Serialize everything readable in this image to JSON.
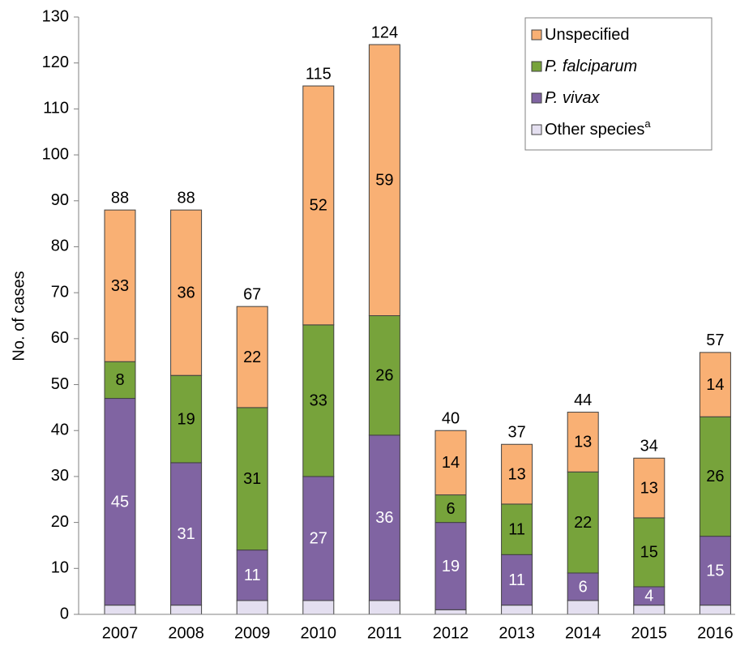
{
  "chart_data": {
    "type": "stacked_bar",
    "ylabel": "No. of cases",
    "categories": [
      "2007",
      "2008",
      "2009",
      "2010",
      "2011",
      "2012",
      "2013",
      "2014",
      "2015",
      "2016"
    ],
    "series": [
      {
        "name": "Other species",
        "superscript": "a",
        "color": "#e4dff0",
        "show_labels": false,
        "label_color": "#000000",
        "italic": false,
        "values": [
          2,
          2,
          3,
          3,
          3,
          1,
          2,
          3,
          2,
          2
        ]
      },
      {
        "name": "P. vivax",
        "color": "#8064a2",
        "show_labels": true,
        "label_color": "#ffffff",
        "italic": true,
        "values": [
          45,
          31,
          11,
          27,
          36,
          19,
          11,
          6,
          4,
          15
        ]
      },
      {
        "name": "P. falciparum",
        "color": "#77a33b",
        "show_labels": true,
        "label_color": "#000000",
        "italic": true,
        "values": [
          8,
          19,
          31,
          33,
          26,
          6,
          11,
          22,
          15,
          26
        ]
      },
      {
        "name": "Unspecified",
        "color": "#f9b074",
        "show_labels": true,
        "label_color": "#000000",
        "italic": false,
        "values": [
          33,
          36,
          22,
          52,
          59,
          14,
          13,
          13,
          13,
          14
        ]
      }
    ],
    "totals": [
      88,
      88,
      67,
      115,
      124,
      40,
      37,
      44,
      34,
      57
    ],
    "ylim": [
      0,
      130
    ],
    "yticks": [
      0,
      10,
      20,
      30,
      40,
      50,
      60,
      70,
      80,
      90,
      100,
      110,
      120,
      130
    ],
    "legend": "top-right",
    "legend_order": "reverse"
  }
}
